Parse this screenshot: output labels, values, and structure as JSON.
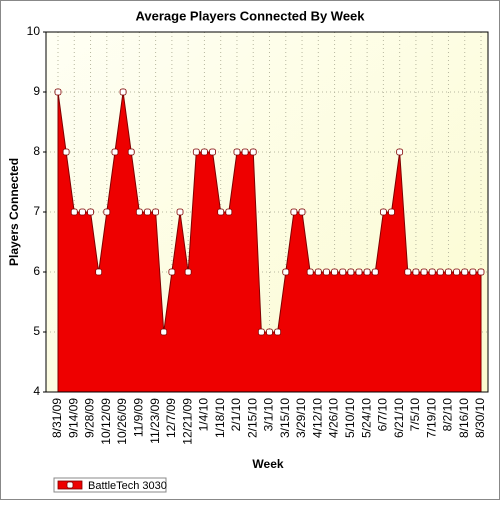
{
  "chart_data": {
    "type": "area",
    "title": "Average Players Connected By Week",
    "x_label": "Week",
    "y_label": "Players Connected",
    "categories": [
      "8/31/09",
      null,
      "9/14/09",
      null,
      "9/28/09",
      null,
      "10/12/09",
      null,
      "10/26/09",
      null,
      "11/9/09",
      null,
      "11/23/09",
      null,
      "12/7/09",
      null,
      "12/21/09",
      null,
      "1/4/10",
      null,
      "1/18/10",
      null,
      "2/1/10",
      null,
      "2/15/10",
      null,
      "3/1/10",
      null,
      "3/15/10",
      null,
      "3/29/10",
      null,
      "4/12/10",
      null,
      "4/26/10",
      null,
      "5/10/10",
      null,
      "5/24/10",
      null,
      "6/7/10",
      null,
      "6/21/10",
      null,
      "7/5/10",
      null,
      "7/19/10",
      null,
      "8/2/10",
      null,
      "8/16/10",
      null,
      "8/30/10"
    ],
    "series": [
      {
        "name": "BattleTech 3030",
        "color": "#ee0000",
        "values": [
          9,
          8,
          7,
          7,
          7,
          6,
          7,
          8,
          9,
          8,
          7,
          7,
          7,
          5,
          6,
          7,
          6,
          8,
          8,
          8,
          7,
          7,
          8,
          8,
          8,
          5,
          5,
          5,
          6,
          7,
          7,
          6,
          6,
          6,
          6,
          6,
          6,
          6,
          6,
          6,
          7,
          7,
          8,
          6,
          6,
          6,
          6,
          6,
          6,
          6,
          6,
          6,
          6
        ]
      }
    ],
    "ylim": [
      4,
      10
    ],
    "yticks": [
      4,
      5,
      6,
      7,
      8,
      9,
      10
    ],
    "grid": true,
    "legend": "bottom-left"
  }
}
